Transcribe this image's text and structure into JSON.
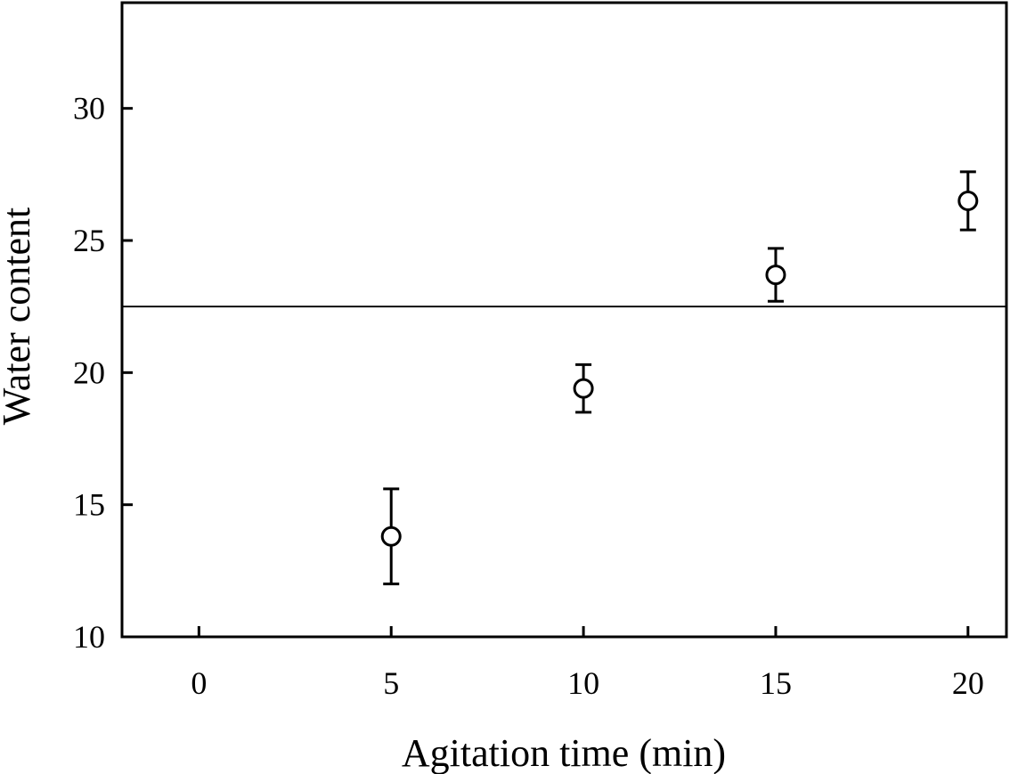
{
  "chart_data": {
    "type": "scatter",
    "title": "",
    "xlabel": "Agitation time (min)",
    "ylabel": "Water content",
    "xlim": [
      -2,
      21
    ],
    "ylim": [
      10,
      34
    ],
    "xticks": [
      0,
      5,
      10,
      15,
      20
    ],
    "yticks": [
      10,
      15,
      20,
      25,
      30
    ],
    "xtick_labels": [
      "0",
      "5",
      "10",
      "15",
      "20"
    ],
    "ytick_labels": [
      "10",
      "15",
      "20",
      "25",
      "30"
    ],
    "grid": false,
    "legend": "none",
    "marker": "open-circle",
    "series": [
      {
        "x": [
          5,
          10,
          15,
          20
        ],
        "y": [
          13.8,
          19.4,
          23.7,
          26.5
        ],
        "error": [
          1.8,
          0.9,
          1.0,
          1.1
        ]
      }
    ],
    "reference_lines": [
      {
        "axis": "y",
        "value": 22.5
      }
    ],
    "colors": {
      "line": "#000000",
      "marker_fill": "#ffffff"
    }
  }
}
